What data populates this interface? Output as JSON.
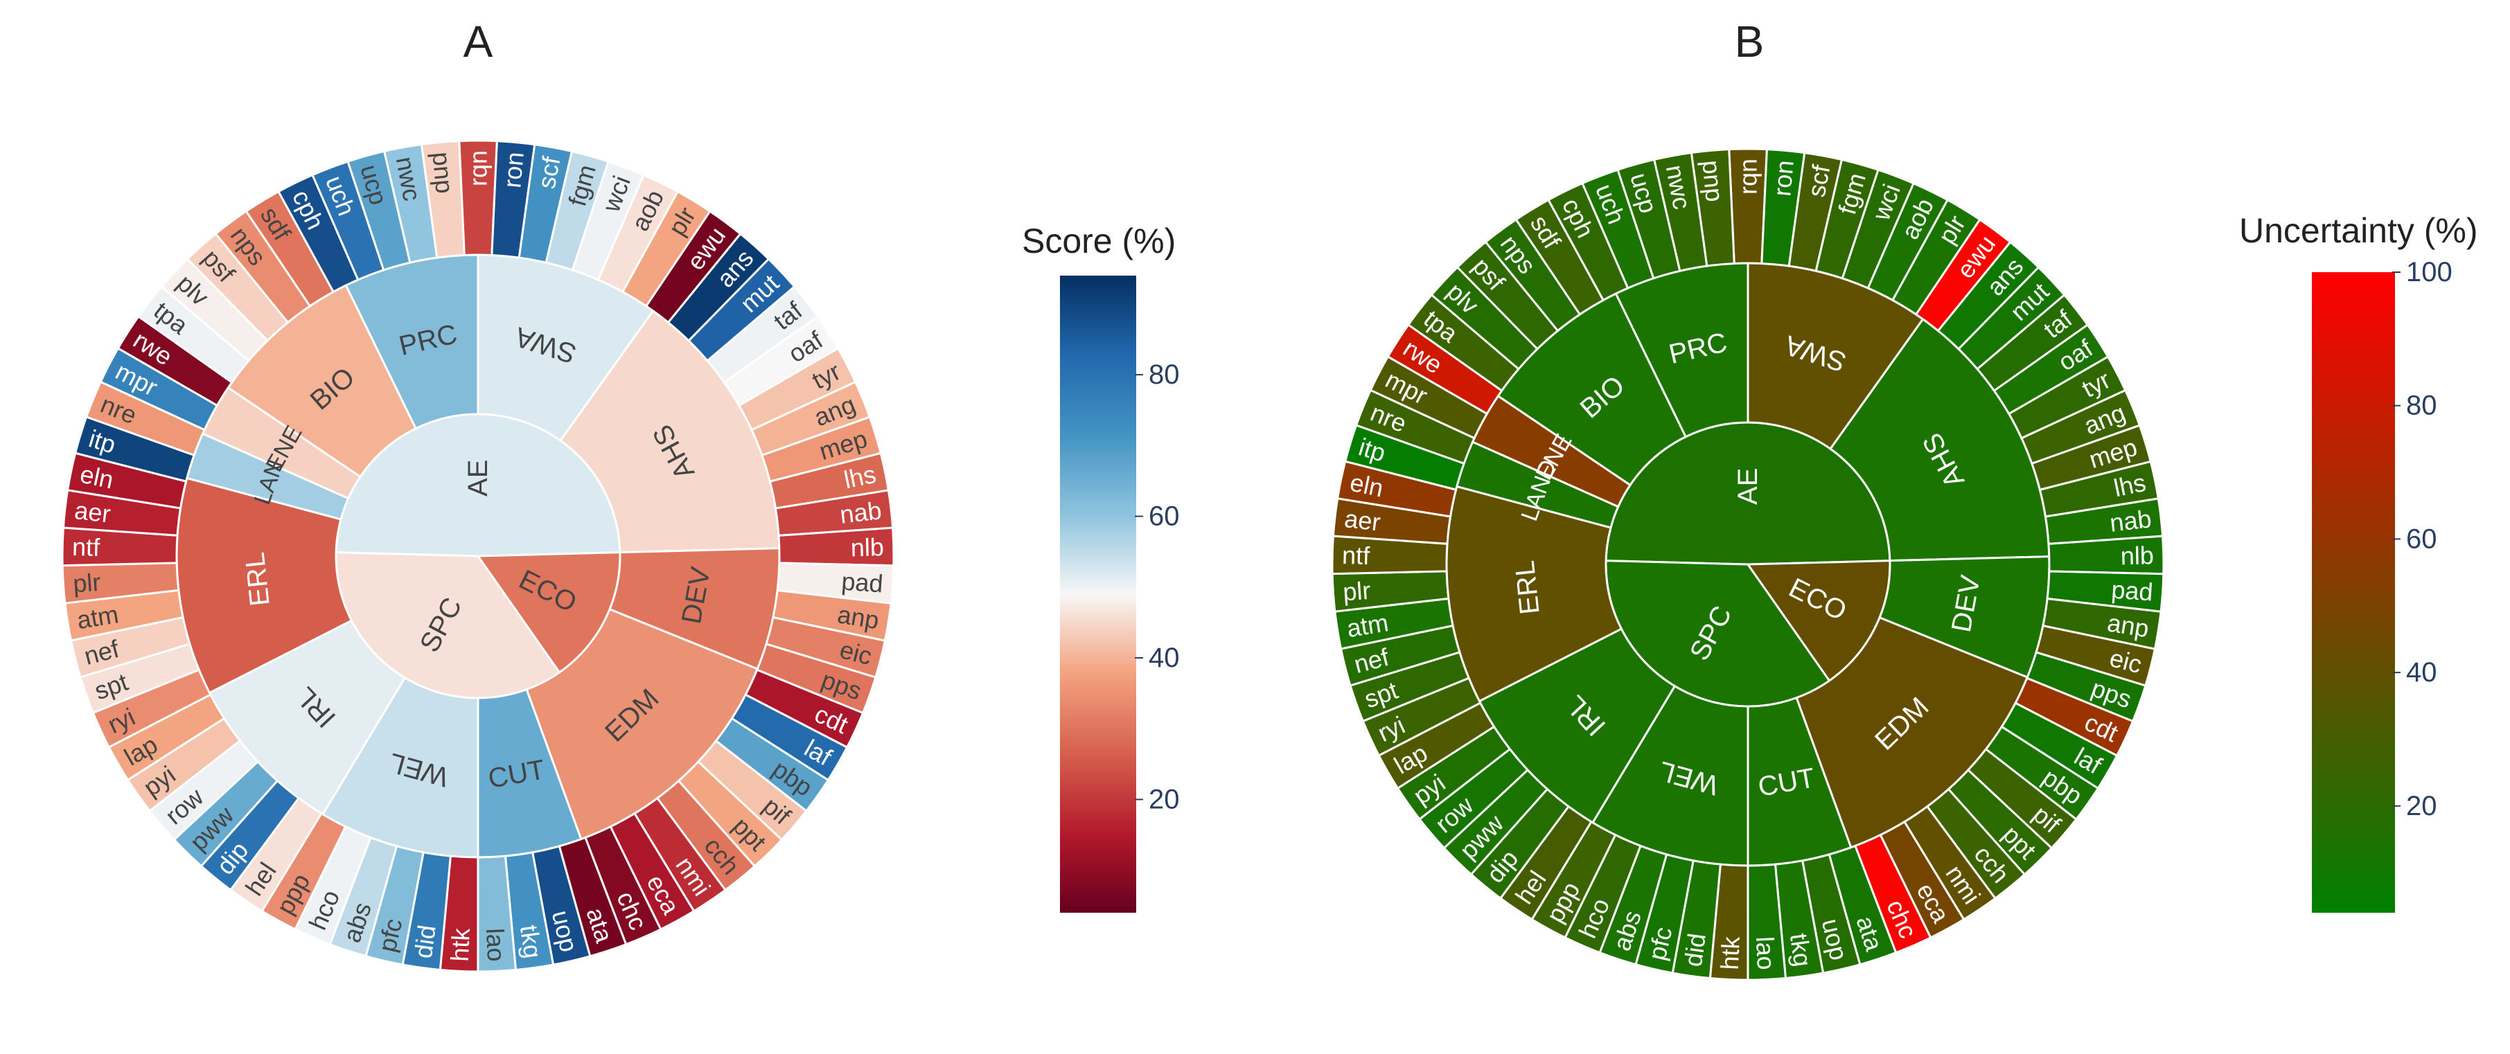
{
  "chart_data": [
    {
      "type": "sunburst",
      "title": "A",
      "metric": "Score (%)",
      "colorbar": {
        "title": "Score (%)",
        "ticks": [
          20,
          40,
          60,
          80
        ],
        "range": [
          4,
          94
        ],
        "palette": "RdBu"
      },
      "root": {
        "label": "AE",
        "value": 52
      },
      "rings": {
        "inner": [
          {
            "label": "AE",
            "value": 52
          },
          {
            "label": "SPC",
            "value": 46
          },
          {
            "label": "ECO",
            "value": 30
          }
        ],
        "middle": [
          {
            "label": "PRC",
            "value": 62,
            "parent": "AE"
          },
          {
            "label": "SWA",
            "value": 52,
            "parent": "AE"
          },
          {
            "label": "AHS",
            "value": 45,
            "parent": "AE"
          },
          {
            "label": "DEV",
            "value": 30,
            "parent": "ECO"
          },
          {
            "label": "EDM",
            "value": 35,
            "parent": "ECO"
          },
          {
            "label": "CUT",
            "value": 66,
            "parent": "SPC"
          },
          {
            "label": "WEL",
            "value": 54,
            "parent": "SPC"
          },
          {
            "label": "IRL",
            "value": 51,
            "parent": "SPC"
          },
          {
            "label": "ERL",
            "value": 26,
            "parent": "SPC"
          },
          {
            "label": "LAN",
            "value": 58,
            "parent": "AE"
          },
          {
            "label": "ENE",
            "value": 44,
            "parent": "AE"
          },
          {
            "label": "BIO",
            "value": 40,
            "parent": "AE"
          }
        ],
        "outer": [
          {
            "label": "rqn",
            "value": 22
          },
          {
            "label": "ron",
            "value": 88
          },
          {
            "label": "scf",
            "value": 72
          },
          {
            "label": "fgm",
            "value": 55
          },
          {
            "label": "wci",
            "value": 50
          },
          {
            "label": "aob",
            "value": 46
          },
          {
            "label": "plr",
            "value": 38
          },
          {
            "label": "ewu",
            "value": 6
          },
          {
            "label": "ans",
            "value": 92
          },
          {
            "label": "mut",
            "value": 84
          },
          {
            "label": "taf",
            "value": 50
          },
          {
            "label": "oaf",
            "value": 49
          },
          {
            "label": "tyr",
            "value": 42
          },
          {
            "label": "ang",
            "value": 40
          },
          {
            "label": "mep",
            "value": 36
          },
          {
            "label": "lhs",
            "value": 28
          },
          {
            "label": "nab",
            "value": 22
          },
          {
            "label": "nlb",
            "value": 20
          },
          {
            "label": "pad",
            "value": 48
          },
          {
            "label": "anp",
            "value": 36
          },
          {
            "label": "eic",
            "value": 32
          },
          {
            "label": "pps",
            "value": 30
          },
          {
            "label": "cdt",
            "value": 14
          },
          {
            "label": "laf",
            "value": 82
          },
          {
            "label": "pbp",
            "value": 68
          },
          {
            "label": "pif",
            "value": 42
          },
          {
            "label": "ppt",
            "value": 38
          },
          {
            "label": "cch",
            "value": 30
          },
          {
            "label": "nmi",
            "value": 18
          },
          {
            "label": "eca",
            "value": 14
          },
          {
            "label": "chc",
            "value": 8
          },
          {
            "label": "ata",
            "value": 6
          },
          {
            "label": "uop",
            "value": 88
          },
          {
            "label": "tkg",
            "value": 72
          },
          {
            "label": "lao",
            "value": 62
          },
          {
            "label": "htk",
            "value": 16
          },
          {
            "label": "did",
            "value": 78
          },
          {
            "label": "pfc",
            "value": 62
          },
          {
            "label": "abs",
            "value": 55
          },
          {
            "label": "hco",
            "value": 50
          },
          {
            "label": "ppp",
            "value": 34
          },
          {
            "label": "hel",
            "value": 46
          },
          {
            "label": "dip",
            "value": 80
          },
          {
            "label": "pww",
            "value": 66
          },
          {
            "label": "row",
            "value": 50
          },
          {
            "label": "pyi",
            "value": 42
          },
          {
            "label": "lap",
            "value": 38
          },
          {
            "label": "ryi",
            "value": 34
          },
          {
            "label": "spt",
            "value": 46
          },
          {
            "label": "nef",
            "value": 44
          },
          {
            "label": "atm",
            "value": 38
          },
          {
            "label": "plr",
            "value": 32
          },
          {
            "label": "ntf",
            "value": 18
          },
          {
            "label": "aer",
            "value": 16
          },
          {
            "label": "eln",
            "value": 14
          },
          {
            "label": "itp",
            "value": 90
          },
          {
            "label": "nre",
            "value": 36
          },
          {
            "label": "mpr",
            "value": 76
          },
          {
            "label": "rwe",
            "value": 8
          },
          {
            "label": "tpa",
            "value": 50
          },
          {
            "label": "plv",
            "value": 48
          },
          {
            "label": "psf",
            "value": 44
          },
          {
            "label": "nps",
            "value": 34
          },
          {
            "label": "sdf",
            "value": 30
          },
          {
            "label": "cph",
            "value": 88
          },
          {
            "label": "uch",
            "value": 80
          },
          {
            "label": "ucp",
            "value": 68
          },
          {
            "label": "nwc",
            "value": 60
          },
          {
            "label": "pnp",
            "value": 44
          }
        ]
      }
    },
    {
      "type": "sunburst",
      "title": "B",
      "metric": "Uncertainty (%)",
      "colorbar": {
        "title": "Uncertainty (%)",
        "ticks": [
          20,
          40,
          60,
          80,
          100
        ],
        "range": [
          4,
          100
        ],
        "palette": "green-red"
      },
      "root": {
        "label": "AE",
        "value": 15
      },
      "rings": {
        "inner": [
          {
            "label": "AE",
            "value": 15
          },
          {
            "label": "SPC",
            "value": 14
          },
          {
            "label": "ECO",
            "value": 42
          }
        ],
        "middle": [
          {
            "label": "PRC",
            "value": 14
          },
          {
            "label": "SWA",
            "value": 40
          },
          {
            "label": "AHS",
            "value": 14
          },
          {
            "label": "DEV",
            "value": 14
          },
          {
            "label": "EDM",
            "value": 42
          },
          {
            "label": "CUT",
            "value": 14
          },
          {
            "label": "WEL",
            "value": 14
          },
          {
            "label": "IRL",
            "value": 14
          },
          {
            "label": "ERL",
            "value": 40
          },
          {
            "label": "LAND",
            "value": 14
          },
          {
            "label": "ENE",
            "value": 55
          },
          {
            "label": "BIO",
            "value": 14
          }
        ],
        "outer": [
          {
            "label": "rqn",
            "value": 40
          },
          {
            "label": "ron",
            "value": 10
          },
          {
            "label": "scf",
            "value": 30
          },
          {
            "label": "fgm",
            "value": 22
          },
          {
            "label": "wci",
            "value": 18
          },
          {
            "label": "aob",
            "value": 14
          },
          {
            "label": "plr",
            "value": 14
          },
          {
            "label": "ewu",
            "value": 98
          },
          {
            "label": "ans",
            "value": 10
          },
          {
            "label": "mut",
            "value": 12
          },
          {
            "label": "taf",
            "value": 18
          },
          {
            "label": "oaf",
            "value": 14
          },
          {
            "label": "tyr",
            "value": 22
          },
          {
            "label": "ang",
            "value": 26
          },
          {
            "label": "mep",
            "value": 30
          },
          {
            "label": "lhs",
            "value": 22
          },
          {
            "label": "nab",
            "value": 14
          },
          {
            "label": "nlb",
            "value": 12
          },
          {
            "label": "pad",
            "value": 10
          },
          {
            "label": "anp",
            "value": 22
          },
          {
            "label": "eic",
            "value": 38
          },
          {
            "label": "pps",
            "value": 12
          },
          {
            "label": "cdt",
            "value": 62
          },
          {
            "label": "laf",
            "value": 10
          },
          {
            "label": "pbp",
            "value": 14
          },
          {
            "label": "pif",
            "value": 26
          },
          {
            "label": "ppt",
            "value": 20
          },
          {
            "label": "cch",
            "value": 26
          },
          {
            "label": "nmi",
            "value": 40
          },
          {
            "label": "eca",
            "value": 48
          },
          {
            "label": "chc",
            "value": 98
          },
          {
            "label": "ata",
            "value": 12
          },
          {
            "label": "uop",
            "value": 18
          },
          {
            "label": "tkg",
            "value": 14
          },
          {
            "label": "lao",
            "value": 12
          },
          {
            "label": "htk",
            "value": 38
          },
          {
            "label": "did",
            "value": 14
          },
          {
            "label": "pfc",
            "value": 12
          },
          {
            "label": "abs",
            "value": 14
          },
          {
            "label": "hco",
            "value": 22
          },
          {
            "label": "ppp",
            "value": 26
          },
          {
            "label": "hel",
            "value": 30
          },
          {
            "label": "dip",
            "value": 18
          },
          {
            "label": "pww",
            "value": 14
          },
          {
            "label": "row",
            "value": 12
          },
          {
            "label": "pyi",
            "value": 16
          },
          {
            "label": "lap",
            "value": 34
          },
          {
            "label": "ryi",
            "value": 26
          },
          {
            "label": "spt",
            "value": 22
          },
          {
            "label": "nef",
            "value": 18
          },
          {
            "label": "atm",
            "value": 14
          },
          {
            "label": "plr",
            "value": 22
          },
          {
            "label": "ntf",
            "value": 38
          },
          {
            "label": "aer",
            "value": 50
          },
          {
            "label": "eln",
            "value": 58
          },
          {
            "label": "itp",
            "value": 6
          },
          {
            "label": "nre",
            "value": 26
          },
          {
            "label": "mpr",
            "value": 34
          },
          {
            "label": "rwe",
            "value": 82
          },
          {
            "label": "tpa",
            "value": 26
          },
          {
            "label": "plv",
            "value": 18
          },
          {
            "label": "psf",
            "value": 22
          },
          {
            "label": "nps",
            "value": 18
          },
          {
            "label": "sdf",
            "value": 26
          },
          {
            "label": "cph",
            "value": 22
          },
          {
            "label": "uch",
            "value": 14
          },
          {
            "label": "ucp",
            "value": 18
          },
          {
            "label": "nwc",
            "value": 22
          },
          {
            "label": "pnp",
            "value": 26
          }
        ]
      }
    }
  ]
}
